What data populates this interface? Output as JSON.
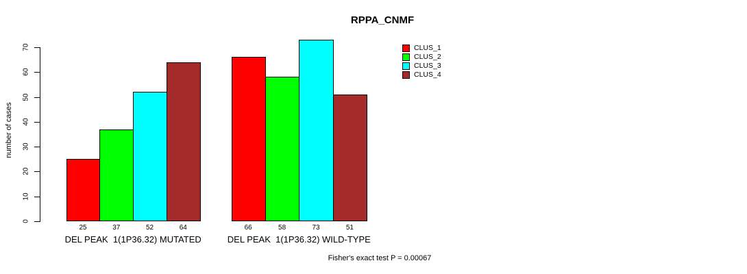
{
  "chart_data": {
    "type": "bar",
    "title": "RPPA_CNMF",
    "ylabel": "number of cases",
    "xlabel": "",
    "ylim": [
      0,
      70
    ],
    "yticks": [
      0,
      10,
      20,
      30,
      40,
      50,
      60,
      70
    ],
    "grid": false,
    "legend_position": "top-right",
    "bar_edge_color": "#000000",
    "categories": [
      "DEL PEAK  1(1P36.32) MUTATED",
      "DEL PEAK  1(1P36.32) WILD-TYPE"
    ],
    "series": [
      {
        "name": "CLUS_1",
        "color": "#FF0000",
        "values": [
          25,
          66
        ]
      },
      {
        "name": "CLUS_2",
        "color": "#00FF00",
        "values": [
          37,
          58
        ]
      },
      {
        "name": "CLUS_3",
        "color": "#00FFFF",
        "values": [
          52,
          73
        ]
      },
      {
        "name": "CLUS_4",
        "color": "#A52A2A",
        "values": [
          64,
          51
        ]
      }
    ],
    "annotation": "Fisher's exact test P = 0.00067"
  }
}
